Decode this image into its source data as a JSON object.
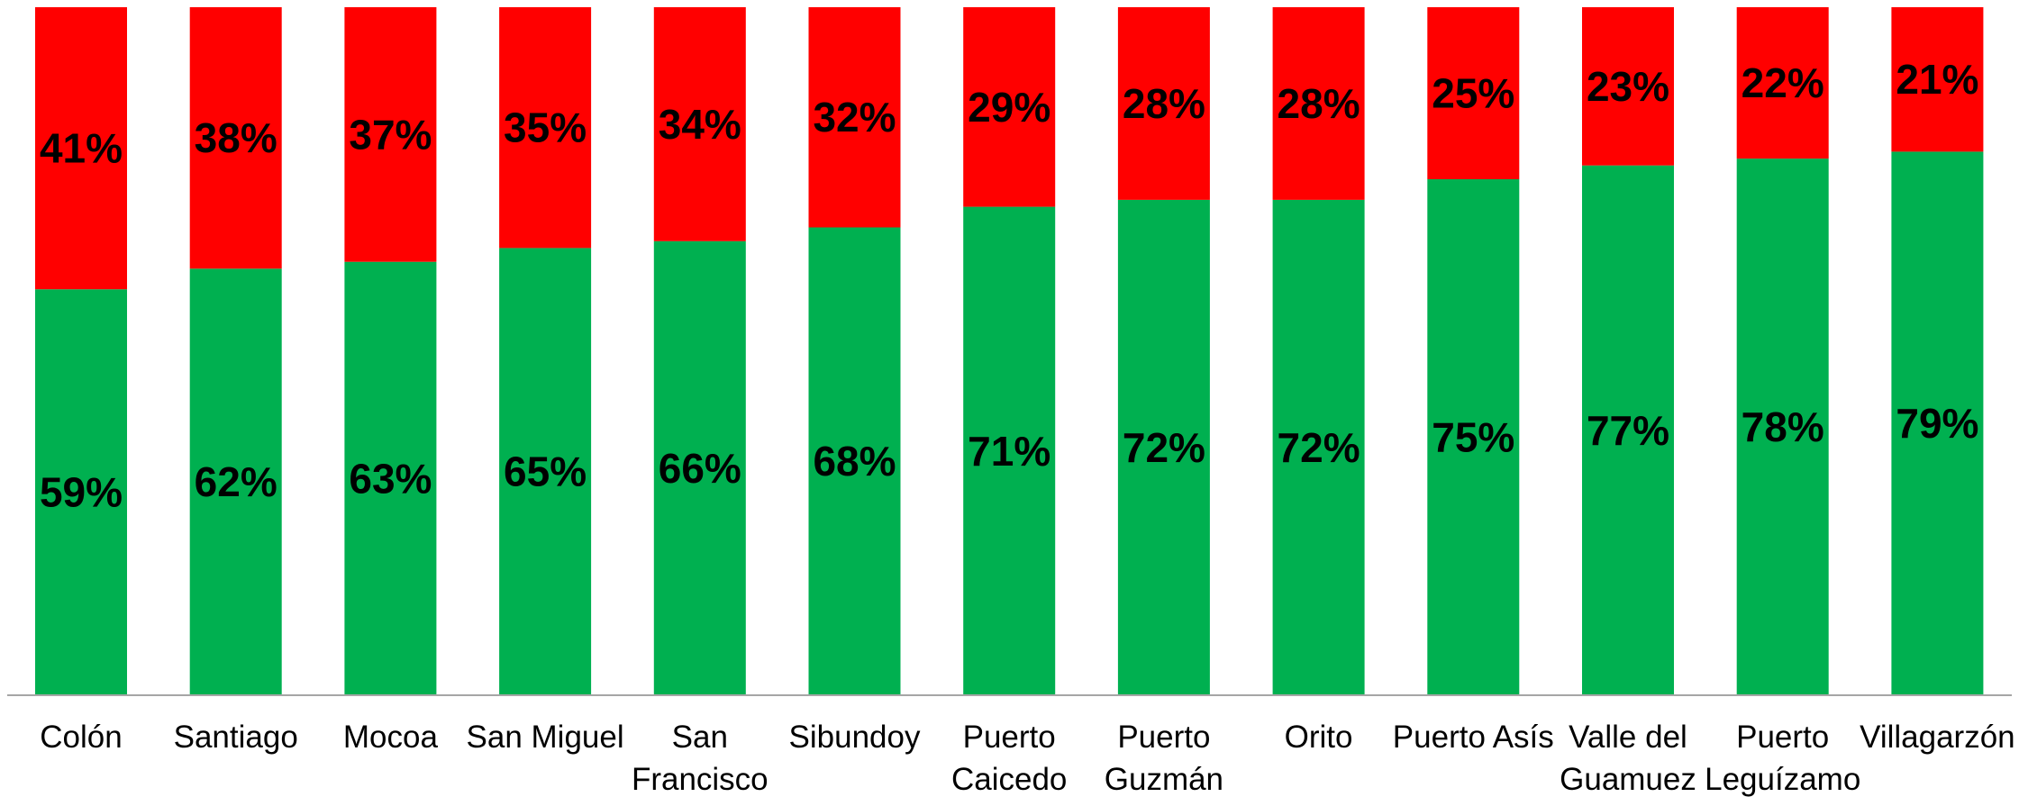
{
  "chart_data": {
    "type": "bar",
    "stacked": true,
    "categories": [
      [
        "Colón"
      ],
      [
        "Santiago"
      ],
      [
        "Mocoa"
      ],
      [
        "San Miguel"
      ],
      [
        "San",
        "Francisco"
      ],
      [
        "Sibundoy"
      ],
      [
        "Puerto",
        "Caicedo"
      ],
      [
        "Puerto",
        "Guzmán"
      ],
      [
        "Orito"
      ],
      [
        "Puerto Asís"
      ],
      [
        "Valle del",
        "Guamuez"
      ],
      [
        "Puerto",
        "Leguízamo"
      ],
      [
        "Villagarzón"
      ]
    ],
    "series": [
      {
        "color": "#00B050",
        "values": [
          59,
          62,
          63,
          65,
          66,
          68,
          71,
          72,
          72,
          75,
          77,
          78,
          79
        ],
        "labels": [
          "59%",
          "62%",
          "63%",
          "65%",
          "66%",
          "68%",
          "71%",
          "72%",
          "72%",
          "75%",
          "77%",
          "78%",
          "79%"
        ]
      },
      {
        "color": "#FF0000",
        "values": [
          41,
          38,
          37,
          35,
          34,
          32,
          29,
          28,
          28,
          25,
          23,
          22,
          21
        ],
        "labels": [
          "41%",
          "38%",
          "37%",
          "35%",
          "34%",
          "32%",
          "29%",
          "28%",
          "28%",
          "25%",
          "23%",
          "22%",
          "21%"
        ]
      }
    ],
    "ylim": [
      0,
      100
    ],
    "grid": false,
    "legend": "none",
    "axis_color": "#A6A6A6"
  }
}
